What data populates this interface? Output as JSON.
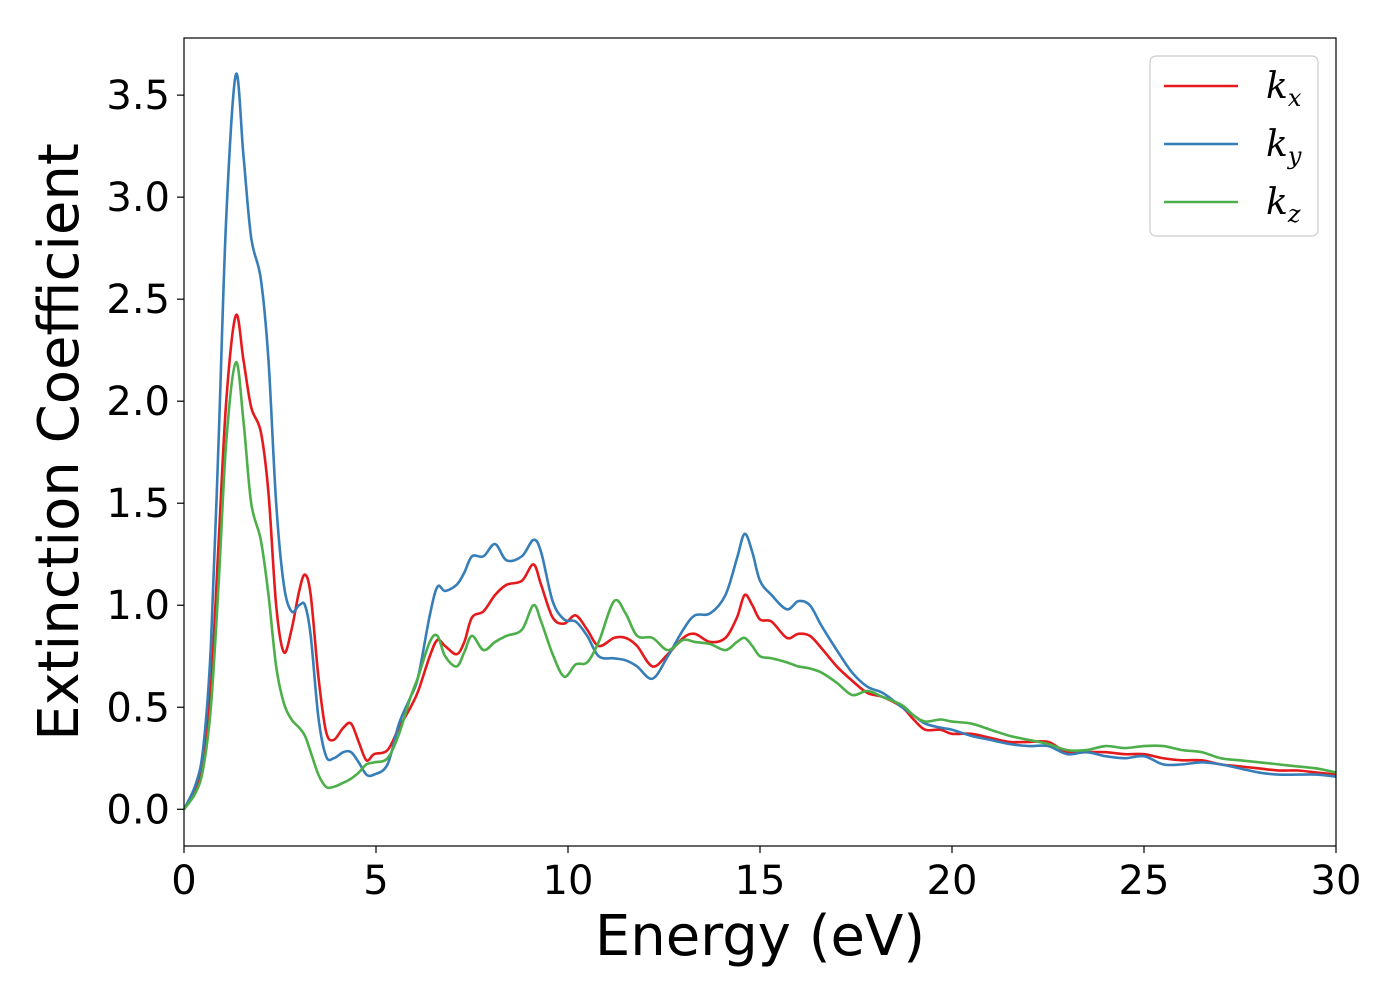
{
  "chart_data": {
    "type": "line",
    "title": "",
    "xlabel": "Energy (eV)",
    "ylabel": "Extinction Coefficient",
    "xlim": [
      0,
      30
    ],
    "ylim": [
      -0.18,
      3.78
    ],
    "xticks": [
      0,
      5,
      10,
      15,
      20,
      25,
      30
    ],
    "xtick_labels": [
      "0",
      "5",
      "10",
      "15",
      "20",
      "25",
      "30"
    ],
    "yticks": [
      0.0,
      0.5,
      1.0,
      1.5,
      2.0,
      2.5,
      3.0,
      3.5
    ],
    "ytick_labels": [
      "0.0",
      "0.5",
      "1.0",
      "1.5",
      "2.0",
      "2.5",
      "3.0",
      "3.5"
    ],
    "grid": false,
    "legend_position": "top-right",
    "series": [
      {
        "name": "k",
        "subscript": "x",
        "color": "#e41a1c",
        "points": [
          [
            0,
            0
          ],
          [
            0.3,
            0.1
          ],
          [
            0.5,
            0.25
          ],
          [
            0.7,
            0.6
          ],
          [
            0.9,
            1.3
          ],
          [
            1.1,
            2.0
          ],
          [
            1.35,
            2.42
          ],
          [
            1.55,
            2.2
          ],
          [
            1.75,
            1.97
          ],
          [
            2.0,
            1.85
          ],
          [
            2.2,
            1.55
          ],
          [
            2.4,
            1.0
          ],
          [
            2.6,
            0.77
          ],
          [
            2.8,
            0.88
          ],
          [
            3.0,
            1.07
          ],
          [
            3.15,
            1.15
          ],
          [
            3.3,
            1.05
          ],
          [
            3.5,
            0.65
          ],
          [
            3.7,
            0.38
          ],
          [
            3.9,
            0.34
          ],
          [
            4.15,
            0.4
          ],
          [
            4.35,
            0.42
          ],
          [
            4.55,
            0.33
          ],
          [
            4.75,
            0.24
          ],
          [
            4.95,
            0.27
          ],
          [
            5.3,
            0.29
          ],
          [
            5.6,
            0.4
          ],
          [
            5.9,
            0.5
          ],
          [
            6.1,
            0.58
          ],
          [
            6.4,
            0.75
          ],
          [
            6.6,
            0.83
          ],
          [
            6.8,
            0.8
          ],
          [
            7.1,
            0.76
          ],
          [
            7.3,
            0.82
          ],
          [
            7.5,
            0.94
          ],
          [
            7.8,
            0.97
          ],
          [
            8.1,
            1.05
          ],
          [
            8.4,
            1.1
          ],
          [
            8.8,
            1.12
          ],
          [
            9.1,
            1.2
          ],
          [
            9.3,
            1.1
          ],
          [
            9.6,
            0.94
          ],
          [
            9.9,
            0.91
          ],
          [
            10.2,
            0.95
          ],
          [
            10.5,
            0.88
          ],
          [
            10.8,
            0.8
          ],
          [
            11.2,
            0.84
          ],
          [
            11.5,
            0.84
          ],
          [
            11.8,
            0.8
          ],
          [
            12.2,
            0.7
          ],
          [
            12.6,
            0.76
          ],
          [
            13.0,
            0.84
          ],
          [
            13.3,
            0.86
          ],
          [
            13.7,
            0.82
          ],
          [
            14.1,
            0.84
          ],
          [
            14.4,
            0.94
          ],
          [
            14.6,
            1.05
          ],
          [
            14.8,
            1.0
          ],
          [
            15.0,
            0.93
          ],
          [
            15.3,
            0.92
          ],
          [
            15.7,
            0.84
          ],
          [
            16.0,
            0.86
          ],
          [
            16.3,
            0.85
          ],
          [
            16.6,
            0.79
          ],
          [
            17.0,
            0.7
          ],
          [
            17.4,
            0.63
          ],
          [
            17.8,
            0.57
          ],
          [
            18.2,
            0.55
          ],
          [
            18.7,
            0.5
          ],
          [
            19.0,
            0.44
          ],
          [
            19.3,
            0.39
          ],
          [
            19.7,
            0.39
          ],
          [
            20.0,
            0.37
          ],
          [
            20.5,
            0.37
          ],
          [
            21.0,
            0.35
          ],
          [
            21.5,
            0.33
          ],
          [
            22.0,
            0.33
          ],
          [
            22.5,
            0.33
          ],
          [
            23.0,
            0.28
          ],
          [
            23.5,
            0.28
          ],
          [
            24.0,
            0.28
          ],
          [
            24.5,
            0.27
          ],
          [
            25.0,
            0.27
          ],
          [
            25.5,
            0.25
          ],
          [
            26.0,
            0.24
          ],
          [
            26.5,
            0.24
          ],
          [
            27.0,
            0.22
          ],
          [
            27.5,
            0.21
          ],
          [
            28.0,
            0.2
          ],
          [
            28.5,
            0.19
          ],
          [
            29.0,
            0.19
          ],
          [
            29.5,
            0.18
          ],
          [
            30.0,
            0.17
          ]
        ]
      },
      {
        "name": "k",
        "subscript": "y",
        "color": "#377eb8",
        "points": [
          [
            0,
            0
          ],
          [
            0.3,
            0.12
          ],
          [
            0.5,
            0.3
          ],
          [
            0.7,
            0.8
          ],
          [
            0.9,
            1.8
          ],
          [
            1.1,
            2.9
          ],
          [
            1.35,
            3.6
          ],
          [
            1.55,
            3.2
          ],
          [
            1.75,
            2.8
          ],
          [
            2.0,
            2.6
          ],
          [
            2.2,
            2.2
          ],
          [
            2.4,
            1.5
          ],
          [
            2.6,
            1.1
          ],
          [
            2.8,
            0.97
          ],
          [
            3.0,
            1.0
          ],
          [
            3.15,
            1.0
          ],
          [
            3.3,
            0.85
          ],
          [
            3.5,
            0.45
          ],
          [
            3.7,
            0.26
          ],
          [
            3.9,
            0.25
          ],
          [
            4.15,
            0.28
          ],
          [
            4.35,
            0.28
          ],
          [
            4.55,
            0.23
          ],
          [
            4.75,
            0.17
          ],
          [
            4.95,
            0.17
          ],
          [
            5.3,
            0.22
          ],
          [
            5.6,
            0.42
          ],
          [
            5.9,
            0.55
          ],
          [
            6.1,
            0.65
          ],
          [
            6.4,
            0.95
          ],
          [
            6.6,
            1.09
          ],
          [
            6.8,
            1.07
          ],
          [
            7.1,
            1.1
          ],
          [
            7.3,
            1.16
          ],
          [
            7.5,
            1.24
          ],
          [
            7.8,
            1.24
          ],
          [
            8.1,
            1.3
          ],
          [
            8.4,
            1.22
          ],
          [
            8.8,
            1.24
          ],
          [
            9.1,
            1.32
          ],
          [
            9.3,
            1.26
          ],
          [
            9.6,
            1.02
          ],
          [
            9.9,
            0.93
          ],
          [
            10.2,
            0.92
          ],
          [
            10.5,
            0.85
          ],
          [
            10.8,
            0.75
          ],
          [
            11.2,
            0.74
          ],
          [
            11.5,
            0.73
          ],
          [
            11.8,
            0.7
          ],
          [
            12.2,
            0.64
          ],
          [
            12.6,
            0.75
          ],
          [
            13.0,
            0.88
          ],
          [
            13.3,
            0.95
          ],
          [
            13.7,
            0.96
          ],
          [
            14.1,
            1.05
          ],
          [
            14.4,
            1.23
          ],
          [
            14.6,
            1.35
          ],
          [
            14.8,
            1.26
          ],
          [
            15.0,
            1.12
          ],
          [
            15.3,
            1.05
          ],
          [
            15.7,
            0.98
          ],
          [
            16.0,
            1.02
          ],
          [
            16.3,
            1.0
          ],
          [
            16.6,
            0.9
          ],
          [
            17.0,
            0.78
          ],
          [
            17.4,
            0.67
          ],
          [
            17.8,
            0.6
          ],
          [
            18.2,
            0.57
          ],
          [
            18.7,
            0.5
          ],
          [
            19.0,
            0.46
          ],
          [
            19.3,
            0.42
          ],
          [
            19.7,
            0.4
          ],
          [
            20.0,
            0.39
          ],
          [
            20.5,
            0.36
          ],
          [
            21.0,
            0.34
          ],
          [
            21.5,
            0.32
          ],
          [
            22.0,
            0.31
          ],
          [
            22.5,
            0.31
          ],
          [
            23.0,
            0.27
          ],
          [
            23.5,
            0.28
          ],
          [
            24.0,
            0.26
          ],
          [
            24.5,
            0.25
          ],
          [
            25.0,
            0.26
          ],
          [
            25.5,
            0.22
          ],
          [
            26.0,
            0.22
          ],
          [
            26.5,
            0.23
          ],
          [
            27.0,
            0.22
          ],
          [
            27.5,
            0.2
          ],
          [
            28.0,
            0.18
          ],
          [
            28.5,
            0.17
          ],
          [
            29.0,
            0.17
          ],
          [
            29.5,
            0.17
          ],
          [
            30.0,
            0.16
          ]
        ]
      },
      {
        "name": "k",
        "subscript": "z",
        "color": "#4daf4a",
        "points": [
          [
            0,
            0
          ],
          [
            0.3,
            0.08
          ],
          [
            0.5,
            0.2
          ],
          [
            0.7,
            0.5
          ],
          [
            0.9,
            1.1
          ],
          [
            1.1,
            1.8
          ],
          [
            1.35,
            2.19
          ],
          [
            1.55,
            1.9
          ],
          [
            1.75,
            1.5
          ],
          [
            2.0,
            1.32
          ],
          [
            2.2,
            1.05
          ],
          [
            2.4,
            0.7
          ],
          [
            2.6,
            0.52
          ],
          [
            2.8,
            0.44
          ],
          [
            3.0,
            0.4
          ],
          [
            3.15,
            0.36
          ],
          [
            3.3,
            0.28
          ],
          [
            3.5,
            0.17
          ],
          [
            3.7,
            0.11
          ],
          [
            3.9,
            0.11
          ],
          [
            4.15,
            0.13
          ],
          [
            4.35,
            0.15
          ],
          [
            4.55,
            0.18
          ],
          [
            4.75,
            0.22
          ],
          [
            4.95,
            0.23
          ],
          [
            5.3,
            0.25
          ],
          [
            5.6,
            0.37
          ],
          [
            5.9,
            0.55
          ],
          [
            6.1,
            0.65
          ],
          [
            6.4,
            0.82
          ],
          [
            6.6,
            0.85
          ],
          [
            6.8,
            0.75
          ],
          [
            7.1,
            0.7
          ],
          [
            7.3,
            0.77
          ],
          [
            7.5,
            0.85
          ],
          [
            7.8,
            0.78
          ],
          [
            8.1,
            0.82
          ],
          [
            8.4,
            0.85
          ],
          [
            8.8,
            0.88
          ],
          [
            9.1,
            1.0
          ],
          [
            9.3,
            0.92
          ],
          [
            9.6,
            0.76
          ],
          [
            9.9,
            0.65
          ],
          [
            10.2,
            0.71
          ],
          [
            10.5,
            0.72
          ],
          [
            10.8,
            0.82
          ],
          [
            11.2,
            1.02
          ],
          [
            11.5,
            0.96
          ],
          [
            11.8,
            0.85
          ],
          [
            12.2,
            0.84
          ],
          [
            12.6,
            0.78
          ],
          [
            13.0,
            0.83
          ],
          [
            13.3,
            0.82
          ],
          [
            13.7,
            0.81
          ],
          [
            14.1,
            0.78
          ],
          [
            14.4,
            0.82
          ],
          [
            14.6,
            0.84
          ],
          [
            14.8,
            0.8
          ],
          [
            15.0,
            0.75
          ],
          [
            15.3,
            0.74
          ],
          [
            15.7,
            0.72
          ],
          [
            16.0,
            0.7
          ],
          [
            16.3,
            0.69
          ],
          [
            16.6,
            0.67
          ],
          [
            17.0,
            0.62
          ],
          [
            17.4,
            0.56
          ],
          [
            17.8,
            0.58
          ],
          [
            18.2,
            0.55
          ],
          [
            18.7,
            0.51
          ],
          [
            19.0,
            0.46
          ],
          [
            19.3,
            0.43
          ],
          [
            19.7,
            0.44
          ],
          [
            20.0,
            0.43
          ],
          [
            20.5,
            0.42
          ],
          [
            21.0,
            0.39
          ],
          [
            21.5,
            0.36
          ],
          [
            22.0,
            0.34
          ],
          [
            22.5,
            0.32
          ],
          [
            23.0,
            0.29
          ],
          [
            23.5,
            0.29
          ],
          [
            24.0,
            0.31
          ],
          [
            24.5,
            0.3
          ],
          [
            25.0,
            0.31
          ],
          [
            25.5,
            0.31
          ],
          [
            26.0,
            0.29
          ],
          [
            26.5,
            0.28
          ],
          [
            27.0,
            0.25
          ],
          [
            27.5,
            0.24
          ],
          [
            28.0,
            0.23
          ],
          [
            28.5,
            0.22
          ],
          [
            29.0,
            0.21
          ],
          [
            29.5,
            0.2
          ],
          [
            30.0,
            0.18
          ]
        ]
      }
    ]
  }
}
